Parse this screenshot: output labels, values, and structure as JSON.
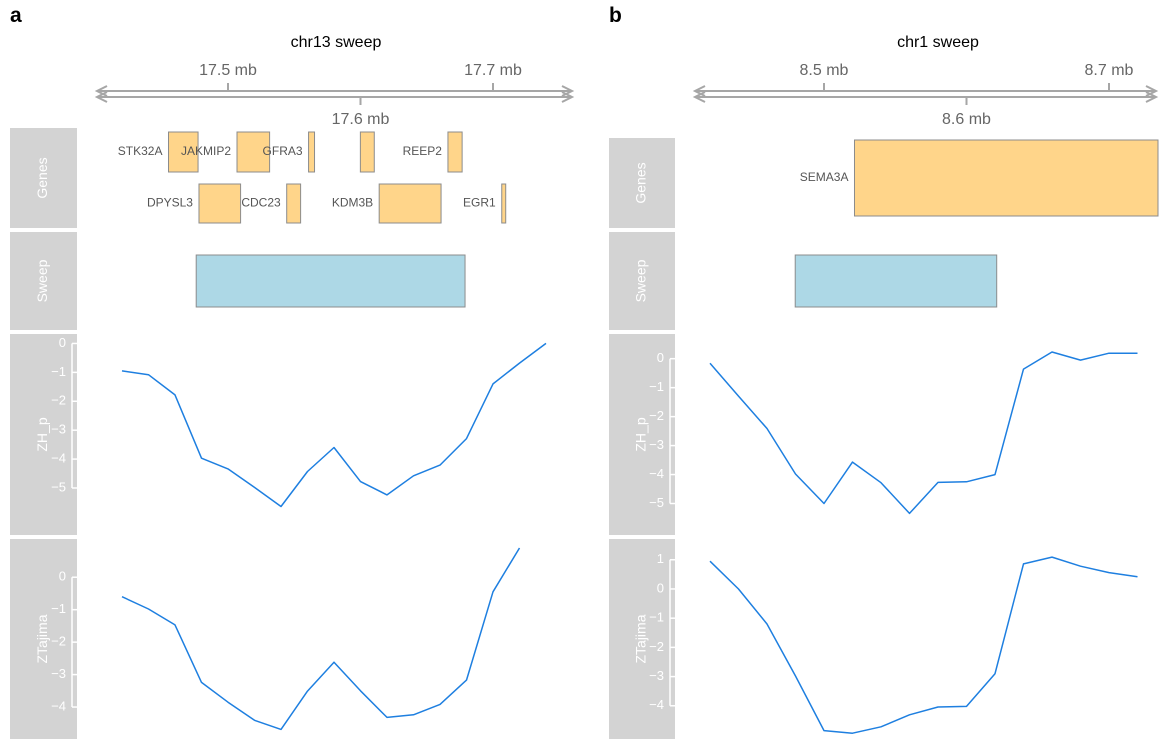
{
  "colors": {
    "track_bg": "#d3d3d3",
    "track_text": "#ffffff",
    "gene_fill": "#ffd58a",
    "gene_stroke": "#8c8c8c",
    "sweep_fill": "#add8e6",
    "sweep_stroke": "#8c8c8c",
    "line": "#1e7fe0",
    "axis": "#a6a6a6",
    "tick_text": "#666666",
    "gene_text": "#555555"
  },
  "chart_data": [
    {
      "type": "line",
      "panel_label": "a",
      "title": "chr13 sweep",
      "genome_axis": {
        "unit": "mb",
        "ticks_top": [
          17.5,
          17.7
        ],
        "ticks_bottom": [
          17.6
        ],
        "tick_labels_top": [
          "17.5 mb",
          "17.7 mb"
        ],
        "tick_labels_bottom": [
          "17.6 mb"
        ],
        "range": [
          17.4,
          17.76
        ]
      },
      "genes_track_label": "Genes",
      "genes": [
        {
          "name": "STK32A",
          "start": 17.4551,
          "end": 17.4774,
          "row": 0
        },
        {
          "name": "JAKMIP2",
          "start": 17.5068,
          "end": 17.5314,
          "row": 0
        },
        {
          "name": "GFRA3",
          "start": 17.5608,
          "end": 17.5653,
          "row": 0
        },
        {
          "name": "REEP2",
          "start": 17.666,
          "end": 17.6767,
          "row": 0
        },
        {
          "name": "DPYSL3",
          "start": 17.4781,
          "end": 17.5095,
          "row": 1
        },
        {
          "name": "CDC23",
          "start": 17.5443,
          "end": 17.5548,
          "row": 1
        },
        {
          "name": "KDM3B",
          "start": 17.6141,
          "end": 17.6608,
          "row": 1
        },
        {
          "name": "EGR1",
          "start": 17.7066,
          "end": 17.7096,
          "row": 1
        },
        {
          "name": "",
          "start": 17.5999,
          "end": 17.6104,
          "row": 0
        }
      ],
      "sweep_track_label": "Sweep",
      "sweep_region": {
        "start": 17.476,
        "end": 17.6789
      },
      "tracks": [
        {
          "name": "ZH_p",
          "yticks": [
            0,
            -1,
            -2,
            -3,
            -4,
            -5
          ],
          "ylim": [
            -5.9,
            0.05
          ],
          "x": [
            17.42,
            17.44,
            17.46,
            17.48,
            17.5,
            17.52,
            17.54,
            17.56,
            17.58,
            17.6,
            17.62,
            17.64,
            17.66,
            17.68,
            17.7,
            17.72,
            17.74
          ],
          "values": [
            -0.95,
            -1.08,
            -1.78,
            -3.97,
            -4.34,
            -4.98,
            -5.64,
            -4.43,
            -3.6,
            -4.78,
            -5.24,
            -4.58,
            -4.21,
            -3.29,
            -1.4,
            -0.68,
            0.0
          ]
        },
        {
          "name": "ZTajima",
          "yticks": [
            0,
            -1,
            -2,
            -3,
            -4
          ],
          "ylim": [
            -4.8,
            0.9
          ],
          "x": [
            17.42,
            17.44,
            17.46,
            17.48,
            17.5,
            17.52,
            17.54,
            17.56,
            17.58,
            17.6,
            17.62,
            17.64,
            17.66,
            17.68,
            17.7,
            17.72,
            17.74
          ],
          "values": [
            -0.6,
            -0.98,
            -1.47,
            -3.24,
            -3.85,
            -4.41,
            -4.69,
            -3.51,
            -2.62,
            -3.5,
            -4.32,
            -4.24,
            -3.92,
            -3.17,
            -0.45,
            0.9,
            null
          ]
        }
      ]
    },
    {
      "type": "line",
      "panel_label": "b",
      "title": "chr1 sweep",
      "genome_axis": {
        "unit": "mb",
        "ticks_top": [
          8.5,
          8.7
        ],
        "ticks_bottom": [
          8.6
        ],
        "tick_labels_top": [
          "8.5 mb",
          "8.7 mb"
        ],
        "tick_labels_bottom": [
          "8.6 mb"
        ],
        "range": [
          8.4,
          8.738
        ]
      },
      "genes_track_label": "Genes",
      "genes": [
        {
          "name": "SEMA3A",
          "start": 8.5214,
          "end": 8.738,
          "row": 0
        }
      ],
      "sweep_track_label": "Sweep",
      "sweep_region": {
        "start": 8.4798,
        "end": 8.6212
      },
      "tracks": [
        {
          "name": "ZH_p",
          "yticks": [
            0,
            -1,
            -2,
            -3,
            -4,
            -5
          ],
          "ylim": [
            -5.5,
            0.3
          ],
          "x": [
            8.42,
            8.44,
            8.46,
            8.48,
            8.5,
            8.52,
            8.54,
            8.56,
            8.58,
            8.6,
            8.62,
            8.64,
            8.66,
            8.68,
            8.7,
            8.72
          ],
          "values": [
            -0.16,
            -1.29,
            -2.41,
            -3.98,
            -5.0,
            -3.57,
            -4.28,
            -5.34,
            -4.27,
            -4.25,
            -4.0,
            -0.36,
            0.23,
            -0.05,
            0.19,
            0.19
          ]
        },
        {
          "name": "ZTajima",
          "yticks": [
            1,
            0,
            -1,
            -2,
            -3,
            -4
          ],
          "ylim": [
            -5.0,
            1.3
          ],
          "x": [
            8.42,
            8.44,
            8.46,
            8.48,
            8.5,
            8.52,
            8.54,
            8.56,
            8.58,
            8.6,
            8.62,
            8.64,
            8.66,
            8.68,
            8.7,
            8.72
          ],
          "values": [
            0.95,
            0.0,
            -1.2,
            -2.98,
            -4.85,
            -4.94,
            -4.72,
            -4.31,
            -4.04,
            -4.02,
            -2.9,
            0.86,
            1.09,
            0.78,
            0.56,
            0.42
          ]
        }
      ]
    }
  ]
}
